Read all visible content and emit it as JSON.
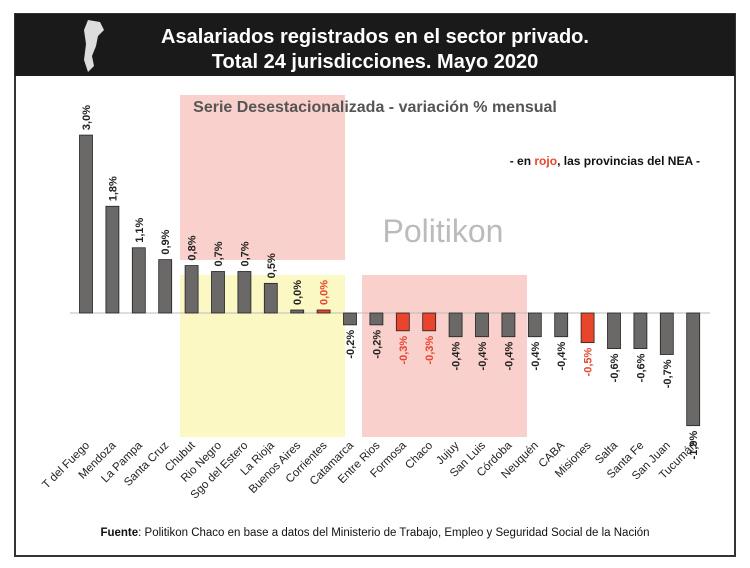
{
  "chart_data": {
    "type": "bar",
    "title": [
      "Asalariados registrados en el sector privado.",
      "Total 24 jurisdicciones. Mayo 2020"
    ],
    "subtitle": "Serie Desestacionalizada - variación % mensual",
    "note": [
      "- en ",
      "rojo",
      ", las provincias del NEA -"
    ],
    "watermark": "Politikon",
    "source": [
      "Fuente",
      ": Politikon Chaco en base a datos del Ministerio de Trabajo, Empleo y Seguridad Social de la Nación"
    ],
    "categories": [
      "T del Fuego",
      "Mendoza",
      "La Pampa",
      "Santa Cruz",
      "Chubut",
      "Rio Negro",
      "Sgo del Estero",
      "La Rioja",
      "Buenos Aires",
      "Corrientes",
      "Catamarca",
      "Entre Rios",
      "Formosa",
      "Chaco",
      "Jujuy",
      "San Luis",
      "Córdoba",
      "Neuquén",
      "CABA",
      "Misiones",
      "Salta",
      "Santa Fe",
      "San Juan",
      "Tucumán"
    ],
    "values": [
      3.0,
      1.8,
      1.1,
      0.9,
      0.8,
      0.7,
      0.7,
      0.5,
      0.0,
      0.0,
      -0.2,
      -0.2,
      -0.3,
      -0.3,
      -0.4,
      -0.4,
      -0.4,
      -0.4,
      -0.4,
      -0.5,
      -0.6,
      -0.6,
      -0.7,
      -1.9
    ],
    "value_labels": [
      "3,0%",
      "1,8%",
      "1,1%",
      "0,9%",
      "0,8%",
      "0,7%",
      "0,7%",
      "0,5%",
      "0,0%",
      "0,0%",
      "-0,2%",
      "-0,2%",
      "-0,3%",
      "-0,3%",
      "-0,4%",
      "-0,4%",
      "-0,4%",
      "-0,4%",
      "-0,4%",
      "-0,5%",
      "-0,6%",
      "-0,6%",
      "-0,7%",
      "-1,9%"
    ],
    "colors": [
      "#6b6868",
      "#6b6868",
      "#6b6868",
      "#6b6868",
      "#6b6868",
      "#6b6868",
      "#6b6868",
      "#6b6868",
      "#6b6868",
      "#e8452c",
      "#6b6868",
      "#6b6868",
      "#e8452c",
      "#e8452c",
      "#6b6868",
      "#6b6868",
      "#6b6868",
      "#6b6868",
      "#6b6868",
      "#e8452c",
      "#6b6868",
      "#6b6868",
      "#6b6868",
      "#6b6868"
    ],
    "label_colors": [
      "#222",
      "#222",
      "#222",
      "#222",
      "#222",
      "#222",
      "#222",
      "#222",
      "#222",
      "#e8452c",
      "#222",
      "#222",
      "#e8452c",
      "#e8452c",
      "#222",
      "#222",
      "#222",
      "#222",
      "#222",
      "#e8452c",
      "#222",
      "#222",
      "#222",
      "#222"
    ]
  }
}
